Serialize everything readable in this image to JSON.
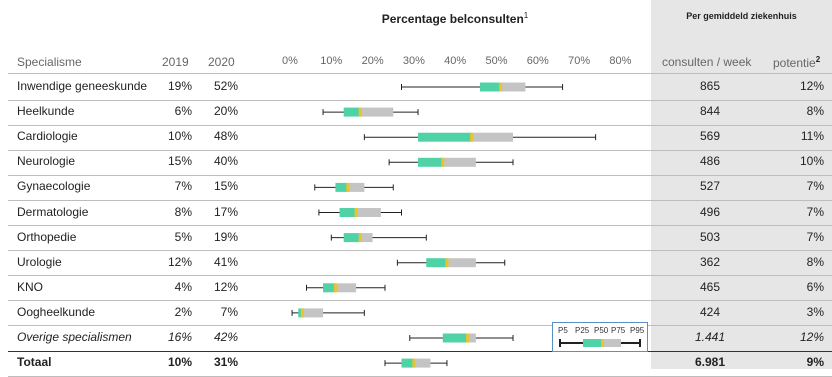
{
  "header": {
    "chart_title": "Percentage belconsulten",
    "chart_title_sup": "1",
    "right_title": "Per gemiddeld ziekenhuis"
  },
  "columns": {
    "specialisme": "Specialisme",
    "y2019": "2019",
    "y2020": "2020",
    "consulten": "consulten / week",
    "potentie": "potentie",
    "potentie_sup": "2"
  },
  "legend": {
    "labels": [
      "P5",
      "P25",
      "P50",
      "P75",
      "P95"
    ]
  },
  "colors": {
    "iqr_lower": "#4fd3a6",
    "iqr_upper": "#c4c4c4",
    "median": "#e9c332",
    "whisker": "#222222",
    "panel": "#e6e6e6"
  },
  "chart_data": {
    "type": "boxplot",
    "title": "Percentage belconsulten",
    "axis": {
      "ticks": [
        "0%",
        "10%",
        "20%",
        "30%",
        "40%",
        "50%",
        "60%",
        "70%",
        "80%"
      ],
      "range": [
        0,
        80
      ]
    },
    "rows": [
      {
        "name": "Inwendige geneeskunde",
        "y2019": "19%",
        "y2020": "52%",
        "consulten": "865",
        "potentie": "12%",
        "p5": 27,
        "p25": 46,
        "p50": 51,
        "p75": 57,
        "p95": 66
      },
      {
        "name": "Heelkunde",
        "y2019": "6%",
        "y2020": "20%",
        "consulten": "844",
        "potentie": "8%",
        "p5": 8,
        "p25": 13,
        "p50": 17,
        "p75": 25,
        "p95": 31
      },
      {
        "name": "Cardiologie",
        "y2019": "10%",
        "y2020": "48%",
        "consulten": "569",
        "potentie": "11%",
        "p5": 18,
        "p25": 31,
        "p50": 44,
        "p75": 54,
        "p95": 74
      },
      {
        "name": "Neurologie",
        "y2019": "15%",
        "y2020": "40%",
        "consulten": "486",
        "potentie": "10%",
        "p5": 24,
        "p25": 31,
        "p50": 37,
        "p75": 45,
        "p95": 54
      },
      {
        "name": "Gynaecologie",
        "y2019": "7%",
        "y2020": "15%",
        "consulten": "527",
        "potentie": "7%",
        "p5": 6,
        "p25": 11,
        "p50": 14,
        "p75": 18,
        "p95": 25
      },
      {
        "name": "Dermatologie",
        "y2019": "8%",
        "y2020": "17%",
        "consulten": "496",
        "potentie": "7%",
        "p5": 7,
        "p25": 12,
        "p50": 16,
        "p75": 22,
        "p95": 27
      },
      {
        "name": "Orthopedie",
        "y2019": "5%",
        "y2020": "19%",
        "consulten": "503",
        "potentie": "7%",
        "p5": 10,
        "p25": 13,
        "p50": 17,
        "p75": 20,
        "p95": 33
      },
      {
        "name": "Urologie",
        "y2019": "12%",
        "y2020": "41%",
        "consulten": "362",
        "potentie": "8%",
        "p5": 26,
        "p25": 33,
        "p50": 38,
        "p75": 45,
        "p95": 52
      },
      {
        "name": "KNO",
        "y2019": "4%",
        "y2020": "12%",
        "consulten": "465",
        "potentie": "6%",
        "p5": 4,
        "p25": 8,
        "p50": 11,
        "p75": 16,
        "p95": 23
      },
      {
        "name": "Oogheelkunde",
        "y2019": "2%",
        "y2020": "7%",
        "consulten": "424",
        "potentie": "3%",
        "p5": 0.5,
        "p25": 2,
        "p50": 3,
        "p75": 8,
        "p95": 18
      },
      {
        "name": "Overige specialismen",
        "y2019": "16%",
        "y2020": "42%",
        "consulten": "1.441",
        "potentie": "12%",
        "p5": 29,
        "p25": 37,
        "p50": 43,
        "p75": 45,
        "p95": 54,
        "style": "italic"
      },
      {
        "name": "Totaal",
        "y2019": "10%",
        "y2020": "31%",
        "consulten": "6.981",
        "potentie": "9%",
        "p5": 23,
        "p25": 27,
        "p50": 30,
        "p75": 34,
        "p95": 38,
        "style": "bold"
      }
    ]
  }
}
